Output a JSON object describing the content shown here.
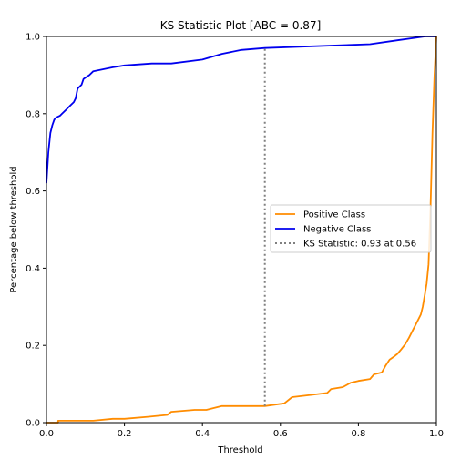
{
  "chart_data": {
    "type": "line",
    "title": "KS Statistic Plot [ABC = 0.87]",
    "xlabel": "Threshold",
    "ylabel": "Percentage below threshold",
    "xlim": [
      0.0,
      1.0
    ],
    "ylim": [
      0.0,
      1.0
    ],
    "xticks": [
      "0.0",
      "0.2",
      "0.4",
      "0.6",
      "0.8",
      "1.0"
    ],
    "yticks": [
      "0.0",
      "0.2",
      "0.4",
      "0.6",
      "0.8",
      "1.0"
    ],
    "grid": false,
    "legend_position": "center-right",
    "series": [
      {
        "name": "Positive Class",
        "color": "#ff8c00",
        "x": [
          0.0,
          0.03,
          0.03,
          0.12,
          0.17,
          0.2,
          0.26,
          0.31,
          0.32,
          0.38,
          0.41,
          0.45,
          0.56,
          0.61,
          0.63,
          0.68,
          0.72,
          0.73,
          0.76,
          0.78,
          0.8,
          0.83,
          0.84,
          0.86,
          0.87,
          0.88,
          0.89,
          0.9,
          0.91,
          0.92,
          0.93,
          0.94,
          0.95,
          0.96,
          0.965,
          0.97,
          0.975,
          0.98,
          0.985,
          0.99,
          0.995,
          1.0
        ],
        "y": [
          0.0,
          0.0,
          0.005,
          0.005,
          0.01,
          0.01,
          0.015,
          0.02,
          0.028,
          0.033,
          0.033,
          0.043,
          0.043,
          0.05,
          0.066,
          0.072,
          0.077,
          0.087,
          0.092,
          0.103,
          0.108,
          0.113,
          0.125,
          0.13,
          0.148,
          0.163,
          0.17,
          0.178,
          0.19,
          0.203,
          0.22,
          0.24,
          0.26,
          0.28,
          0.3,
          0.33,
          0.36,
          0.41,
          0.56,
          0.75,
          0.9,
          1.0
        ]
      },
      {
        "name": "Negative Class",
        "color": "#0000ee",
        "x": [
          0.0,
          0.005,
          0.01,
          0.015,
          0.02,
          0.025,
          0.035,
          0.04,
          0.05,
          0.06,
          0.07,
          0.075,
          0.08,
          0.09,
          0.095,
          0.11,
          0.12,
          0.17,
          0.2,
          0.27,
          0.32,
          0.4,
          0.45,
          0.5,
          0.56,
          0.83,
          0.9,
          0.97,
          1.0
        ],
        "y": [
          0.62,
          0.7,
          0.75,
          0.77,
          0.785,
          0.79,
          0.795,
          0.8,
          0.81,
          0.82,
          0.83,
          0.84,
          0.865,
          0.875,
          0.89,
          0.9,
          0.91,
          0.92,
          0.925,
          0.93,
          0.93,
          0.94,
          0.955,
          0.965,
          0.97,
          0.98,
          0.99,
          1.0,
          1.0
        ]
      },
      {
        "name": "KS Statistic: 0.93 at 0.56",
        "color": "#808080",
        "style": "dotted",
        "x": [
          0.56,
          0.56
        ],
        "y": [
          0.043,
          0.97
        ]
      }
    ]
  }
}
